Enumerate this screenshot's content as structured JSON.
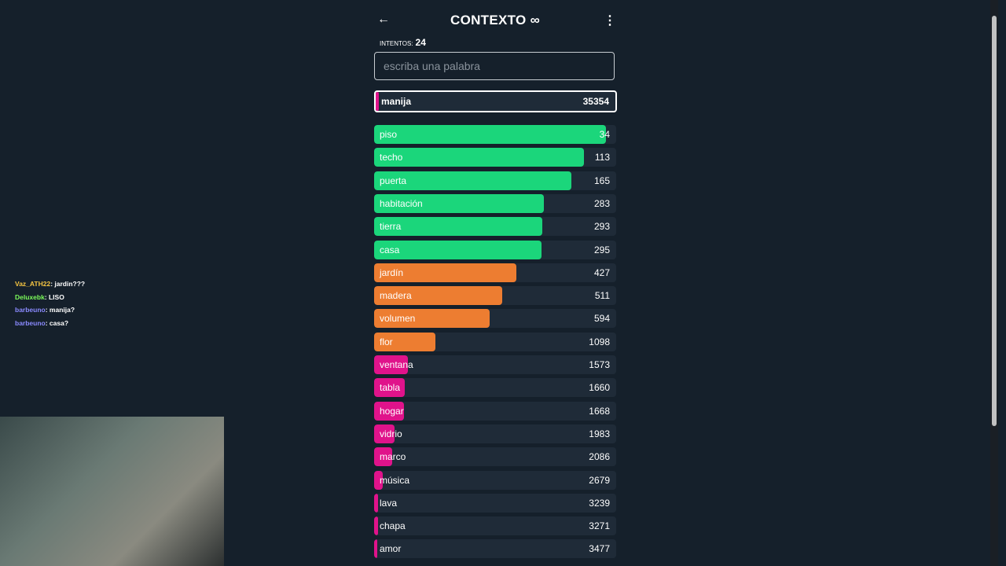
{
  "header": {
    "title": "CONTEXTO"
  },
  "attempts": {
    "label": "INTENTOS:",
    "count": 24
  },
  "input": {
    "placeholder": "escriba una palabra"
  },
  "last_guess": {
    "word": "manija",
    "rank": 35354
  },
  "guesses": [
    {
      "word": "piso",
      "rank": 34
    },
    {
      "word": "techo",
      "rank": 113
    },
    {
      "word": "puerta",
      "rank": 165
    },
    {
      "word": "habitación",
      "rank": 283
    },
    {
      "word": "tierra",
      "rank": 293
    },
    {
      "word": "casa",
      "rank": 295
    },
    {
      "word": "jardín",
      "rank": 427
    },
    {
      "word": "madera",
      "rank": 511
    },
    {
      "word": "volumen",
      "rank": 594
    },
    {
      "word": "flor",
      "rank": 1098
    },
    {
      "word": "ventana",
      "rank": 1573
    },
    {
      "word": "tabla",
      "rank": 1660
    },
    {
      "word": "hogar",
      "rank": 1668
    },
    {
      "word": "vidrio",
      "rank": 1983
    },
    {
      "word": "marco",
      "rank": 2086
    },
    {
      "word": "música",
      "rank": 2679
    },
    {
      "word": "lava",
      "rank": 3239
    },
    {
      "word": "chapa",
      "rank": 3271
    },
    {
      "word": "amor",
      "rank": 3477
    }
  ],
  "chat": [
    {
      "user": "Vaz_ATH22",
      "text": ": jardin???",
      "color": "#f5c542"
    },
    {
      "user": "Deluxebk",
      "text": ": LISO",
      "color": "#7cfc5a"
    },
    {
      "user": "barbeuno",
      "text": ": manija?",
      "color": "#8a8aff"
    },
    {
      "user": "barbeuno",
      "text": ": casa?",
      "color": "#8a8aff"
    }
  ]
}
